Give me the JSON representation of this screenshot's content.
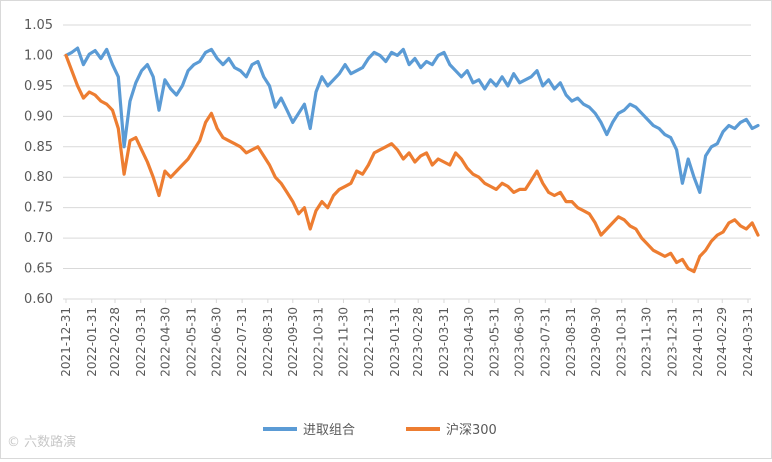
{
  "colors": {
    "series1": "#5b9bd5",
    "series2": "#ed7d31",
    "grid": "#d9d9d9",
    "text": "#595959"
  },
  "watermark": {
    "symbol": "©",
    "text": "六数路演"
  },
  "chart_data": {
    "type": "line",
    "title": "",
    "xlabel": "",
    "ylabel": "",
    "ylim": [
      0.6,
      1.05
    ],
    "yticks": [
      "1.05",
      "1.00",
      "0.95",
      "0.90",
      "0.85",
      "0.80",
      "0.75",
      "0.70",
      "0.65",
      "0.60"
    ],
    "grid": "horizontal",
    "legend_position": "bottom",
    "x_ticks": [
      "2021-12-31",
      "2022-01-31",
      "2022-02-28",
      "2022-03-31",
      "2022-04-30",
      "2022-05-31",
      "2022-06-30",
      "2022-07-31",
      "2022-08-31",
      "2022-09-30",
      "2022-10-31",
      "2022-11-30",
      "2022-12-31",
      "2023-01-31",
      "2023-02-28",
      "2023-03-31",
      "2023-04-30",
      "2023-05-31",
      "2023-06-30",
      "2023-07-31",
      "2023-08-31",
      "2023-09-30",
      "2023-10-31",
      "2023-11-30",
      "2023-12-31",
      "2024-01-31",
      "2024-02-29",
      "2024-03-31"
    ],
    "x": [
      "2021-12-31",
      "2022-01-07",
      "2022-01-14",
      "2022-01-21",
      "2022-01-28",
      "2022-02-04",
      "2022-02-11",
      "2022-02-18",
      "2022-02-25",
      "2022-03-04",
      "2022-03-11",
      "2022-03-18",
      "2022-03-25",
      "2022-04-01",
      "2022-04-08",
      "2022-04-15",
      "2022-04-22",
      "2022-04-29",
      "2022-05-06",
      "2022-05-13",
      "2022-05-20",
      "2022-05-27",
      "2022-06-03",
      "2022-06-10",
      "2022-06-17",
      "2022-06-24",
      "2022-07-01",
      "2022-07-08",
      "2022-07-15",
      "2022-07-22",
      "2022-07-29",
      "2022-08-05",
      "2022-08-12",
      "2022-08-19",
      "2022-08-26",
      "2022-09-02",
      "2022-09-09",
      "2022-09-16",
      "2022-09-23",
      "2022-09-30",
      "2022-10-07",
      "2022-10-14",
      "2022-10-21",
      "2022-10-28",
      "2022-11-04",
      "2022-11-11",
      "2022-11-18",
      "2022-11-25",
      "2022-12-02",
      "2022-12-09",
      "2022-12-16",
      "2022-12-23",
      "2022-12-30",
      "2023-01-06",
      "2023-01-13",
      "2023-01-20",
      "2023-01-27",
      "2023-02-03",
      "2023-02-10",
      "2023-02-17",
      "2023-02-24",
      "2023-03-03",
      "2023-03-10",
      "2023-03-17",
      "2023-03-24",
      "2023-03-31",
      "2023-04-07",
      "2023-04-14",
      "2023-04-21",
      "2023-04-28",
      "2023-05-05",
      "2023-05-12",
      "2023-05-19",
      "2023-05-26",
      "2023-06-02",
      "2023-06-09",
      "2023-06-16",
      "2023-06-23",
      "2023-06-30",
      "2023-07-07",
      "2023-07-14",
      "2023-07-21",
      "2023-07-28",
      "2023-08-04",
      "2023-08-11",
      "2023-08-18",
      "2023-08-25",
      "2023-09-01",
      "2023-09-08",
      "2023-09-15",
      "2023-09-22",
      "2023-09-29",
      "2023-10-06",
      "2023-10-13",
      "2023-10-20",
      "2023-10-27",
      "2023-11-03",
      "2023-11-10",
      "2023-11-17",
      "2023-11-24",
      "2023-12-01",
      "2023-12-08",
      "2023-12-15",
      "2023-12-22",
      "2023-12-29",
      "2024-01-05",
      "2024-01-12",
      "2024-01-19",
      "2024-01-26",
      "2024-02-02",
      "2024-02-09",
      "2024-02-16",
      "2024-02-23",
      "2024-03-01",
      "2024-03-08",
      "2024-03-15",
      "2024-03-22",
      "2024-03-29",
      "2024-04-05",
      "2024-04-12"
    ],
    "series": [
      {
        "name": "进取组合",
        "color": "#5b9bd5",
        "values": [
          1.0,
          1.005,
          1.012,
          0.985,
          1.002,
          1.008,
          0.995,
          1.01,
          0.985,
          0.965,
          0.85,
          0.925,
          0.955,
          0.975,
          0.985,
          0.965,
          0.91,
          0.96,
          0.945,
          0.935,
          0.95,
          0.975,
          0.985,
          0.99,
          1.005,
          1.01,
          0.995,
          0.985,
          0.995,
          0.98,
          0.975,
          0.965,
          0.985,
          0.99,
          0.965,
          0.95,
          0.915,
          0.93,
          0.91,
          0.89,
          0.905,
          0.92,
          0.88,
          0.94,
          0.965,
          0.95,
          0.96,
          0.97,
          0.985,
          0.97,
          0.975,
          0.98,
          0.995,
          1.005,
          1.0,
          0.99,
          1.005,
          1.0,
          1.01,
          0.985,
          0.995,
          0.98,
          0.99,
          0.985,
          1.0,
          1.005,
          0.985,
          0.975,
          0.965,
          0.975,
          0.955,
          0.96,
          0.945,
          0.96,
          0.95,
          0.965,
          0.95,
          0.97,
          0.955,
          0.96,
          0.965,
          0.975,
          0.95,
          0.96,
          0.945,
          0.955,
          0.935,
          0.925,
          0.93,
          0.92,
          0.915,
          0.905,
          0.89,
          0.87,
          0.89,
          0.905,
          0.91,
          0.92,
          0.915,
          0.905,
          0.895,
          0.885,
          0.88,
          0.87,
          0.865,
          0.845,
          0.79,
          0.83,
          0.8,
          0.775,
          0.835,
          0.85,
          0.855,
          0.875,
          0.885,
          0.88,
          0.89,
          0.895,
          0.88,
          0.885
        ]
      },
      {
        "name": "沪深300",
        "color": "#ed7d31",
        "values": [
          1.0,
          0.975,
          0.95,
          0.93,
          0.94,
          0.935,
          0.925,
          0.92,
          0.91,
          0.88,
          0.805,
          0.86,
          0.865,
          0.845,
          0.825,
          0.8,
          0.77,
          0.81,
          0.8,
          0.81,
          0.82,
          0.83,
          0.845,
          0.86,
          0.89,
          0.905,
          0.88,
          0.865,
          0.86,
          0.855,
          0.85,
          0.84,
          0.845,
          0.85,
          0.835,
          0.82,
          0.8,
          0.79,
          0.775,
          0.76,
          0.74,
          0.75,
          0.715,
          0.745,
          0.76,
          0.75,
          0.77,
          0.78,
          0.785,
          0.79,
          0.81,
          0.805,
          0.82,
          0.84,
          0.845,
          0.85,
          0.855,
          0.845,
          0.83,
          0.84,
          0.825,
          0.835,
          0.84,
          0.82,
          0.83,
          0.825,
          0.82,
          0.84,
          0.83,
          0.815,
          0.805,
          0.8,
          0.79,
          0.785,
          0.78,
          0.79,
          0.785,
          0.775,
          0.78,
          0.78,
          0.795,
          0.81,
          0.79,
          0.775,
          0.77,
          0.775,
          0.76,
          0.76,
          0.75,
          0.745,
          0.74,
          0.725,
          0.705,
          0.715,
          0.725,
          0.735,
          0.73,
          0.72,
          0.715,
          0.7,
          0.69,
          0.68,
          0.675,
          0.67,
          0.675,
          0.66,
          0.665,
          0.65,
          0.645,
          0.67,
          0.68,
          0.695,
          0.705,
          0.71,
          0.725,
          0.73,
          0.72,
          0.715,
          0.725,
          0.705
        ]
      }
    ]
  }
}
